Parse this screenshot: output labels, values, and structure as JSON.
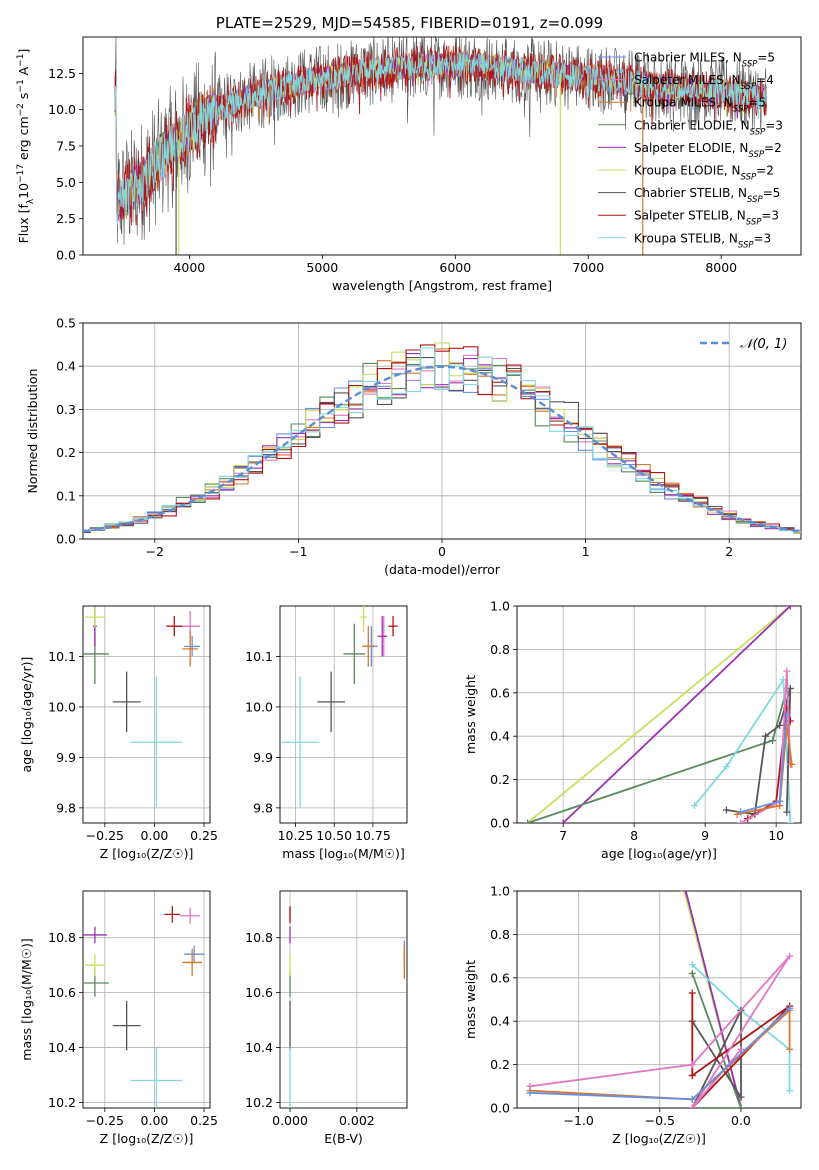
{
  "title": "PLATE=2529, MJD=54585, FIBERID=0191, z=0.099",
  "colors": {
    "chabrier_miles": "#6a8ee0",
    "salpeter_miles": "#e377c2",
    "kroupa_miles": "#d9772a",
    "chabrier_elodie": "#5a8a5e",
    "salpeter_elodie": "#9b30b0",
    "kroupa_elodie": "#c8e060",
    "chabrier_stelib": "#555555",
    "salpeter_stelib": "#b01515",
    "kroupa_stelib": "#80d8e0",
    "gaussian": "#5b8ed6",
    "grid": "#b0b0b0"
  },
  "chart_data": [
    {
      "id": "spectrum",
      "type": "line",
      "xlabel": "wavelength [Angstrom, rest frame]",
      "ylabel": "Flux [f$_\\lambda$10$^{-17}$ erg cm$^{-2}$ s$^{-1}$ A$^{-1}$]",
      "ylabel_parts": [
        "Flux [f",
        "λ",
        "10",
        "−17",
        " erg cm",
        "−2",
        " s",
        "−1",
        " A",
        "−1",
        "]"
      ],
      "xlim": [
        3200,
        8600
      ],
      "ylim": [
        0,
        15
      ],
      "xticks": [
        4000,
        5000,
        6000,
        7000,
        8000
      ],
      "yticks": [
        0.0,
        2.5,
        5.0,
        7.5,
        10.0,
        12.5
      ],
      "grid": false,
      "legend_position": "top-right",
      "legend": [
        {
          "key": "chabrier_miles",
          "label": "Chabrier MILES, N",
          "sub": "SSP",
          "suffix": "=5"
        },
        {
          "key": "salpeter_miles",
          "label": "Salpeter MILES, N",
          "sub": "SSP",
          "suffix": "=4"
        },
        {
          "key": "kroupa_miles",
          "label": "Kroupa MILES, N",
          "sub": "SSP",
          "suffix": "=5"
        },
        {
          "key": "chabrier_elodie",
          "label": "Chabrier ELODIE, N",
          "sub": "SSP",
          "suffix": "=3"
        },
        {
          "key": "salpeter_elodie",
          "label": "Salpeter ELODIE, N",
          "sub": "SSP",
          "suffix": "=2"
        },
        {
          "key": "kroupa_elodie",
          "label": "Kroupa ELODIE, N",
          "sub": "SSP",
          "suffix": "=2"
        },
        {
          "key": "chabrier_stelib",
          "label": "Chabrier STELIB, N",
          "sub": "SSP",
          "suffix": "=5"
        },
        {
          "key": "salpeter_stelib",
          "label": "Salpeter STELIB, N",
          "sub": "SSP",
          "suffix": "=3"
        },
        {
          "key": "kroupa_stelib",
          "label": "Kroupa STELIB, N",
          "sub": "SSP",
          "suffix": "=3"
        }
      ],
      "continuum": {
        "x": [
          3450,
          3550,
          3650,
          3750,
          3850,
          3950,
          4100,
          4300,
          4500,
          4700,
          4900,
          5100,
          5300,
          5500,
          5700,
          5900,
          6100,
          6300,
          6500,
          6700,
          6900,
          7100,
          7300,
          7500,
          7700,
          7900,
          8100,
          8300
        ],
        "y": [
          3.6,
          4.4,
          5.2,
          6.3,
          7.3,
          8.2,
          9.4,
          10.4,
          11.0,
          11.6,
          12.0,
          12.3,
          12.6,
          12.8,
          13.0,
          13.1,
          13.1,
          12.9,
          12.7,
          12.5,
          12.3,
          12.1,
          11.9,
          11.6,
          11.4,
          11.3,
          11.1,
          10.9
        ]
      },
      "dropouts": [
        {
          "key": "kroupa_elodie",
          "x": 6790,
          "to": 0
        },
        {
          "key": "kroupa_miles",
          "x": 7410,
          "to": 0
        },
        {
          "key": "chabrier_stelib",
          "x": 3900,
          "to": 0
        },
        {
          "key": "kroupa_elodie",
          "x": 3920,
          "to": 0
        }
      ]
    },
    {
      "id": "residuals",
      "type": "step-histogram",
      "xlabel": "(data-model)/error",
      "ylabel": "Normed distribution",
      "xlim": [
        -2.5,
        2.5
      ],
      "ylim": [
        0,
        0.5
      ],
      "xticks": [
        -2,
        -1,
        0,
        1,
        2
      ],
      "xtick_labels": [
        "−2",
        "−1",
        "0",
        "1",
        "2"
      ],
      "yticks": [
        0.0,
        0.1,
        0.2,
        0.3,
        0.4,
        0.5
      ],
      "grid": true,
      "legend_position": "top-right",
      "gaussian_label": "𝒩(0, 1)",
      "bin_width": 0.1
    },
    {
      "id": "age_vs_Z",
      "type": "errorbar",
      "xlabel": "Z [log₁₀(Z/Z☉)]",
      "ylabel": "age  [log₁₀(age/yr)]",
      "xlim": [
        -0.36,
        0.28
      ],
      "ylim": [
        9.77,
        10.2
      ],
      "xticks": [
        -0.25,
        0.0,
        0.25
      ],
      "xtick_labels": [
        "−0.25",
        "0.00",
        "0.25"
      ],
      "yticks": [
        9.8,
        9.9,
        10.0,
        10.1
      ],
      "yticks_labels": [
        "9.8",
        "9.9",
        "10.0",
        "10.1"
      ],
      "grid": true,
      "points": [
        {
          "key": "chabrier_miles",
          "x": 0.19,
          "y": 10.12,
          "xerr": 0.04,
          "yerr": 0.02
        },
        {
          "key": "salpeter_miles",
          "x": 0.18,
          "y": 10.16,
          "xerr": 0.05,
          "yerr": 0.03
        },
        {
          "key": "kroupa_miles",
          "x": 0.18,
          "y": 10.115,
          "xerr": 0.04,
          "yerr": 0.035
        },
        {
          "key": "chabrier_elodie",
          "x": -0.3,
          "y": 10.105,
          "xerr": 0.07,
          "yerr": 0.06
        },
        {
          "key": "salpeter_elodie",
          "x": -0.3,
          "y": 10.16,
          "xerr": 0.01,
          "yerr": 0.04
        },
        {
          "key": "kroupa_elodie",
          "x": -0.3,
          "y": 10.178,
          "xerr": 0.05,
          "yerr": 0.02
        },
        {
          "key": "chabrier_stelib",
          "x": -0.14,
          "y": 10.01,
          "xerr": 0.07,
          "yerr": 0.06
        },
        {
          "key": "salpeter_stelib",
          "x": 0.1,
          "y": 10.16,
          "xerr": 0.04,
          "yerr": 0.02
        },
        {
          "key": "kroupa_stelib",
          "x": 0.01,
          "y": 9.93,
          "xerr": 0.13,
          "yerr": 0.13
        }
      ]
    },
    {
      "id": "age_vs_mass",
      "type": "errorbar",
      "xlabel": "mass [log₁₀(M/M☉)]",
      "ylabel": "",
      "xlim": [
        10.15,
        10.97
      ],
      "ylim": [
        9.77,
        10.2
      ],
      "xticks": [
        10.25,
        10.5,
        10.75
      ],
      "xtick_labels": [
        "10.25",
        "10.50",
        "10.75"
      ],
      "yticks": [
        9.8,
        9.9,
        10.0,
        10.1
      ],
      "yticks_labels": [
        "9.8",
        "9.9",
        "10.0",
        "10.1"
      ],
      "grid": true,
      "points": [
        {
          "key": "chabrier_miles",
          "x": 10.74,
          "y": 10.12,
          "xerr": 0.04,
          "yerr": 0.04
        },
        {
          "key": "salpeter_miles",
          "x": 10.82,
          "y": 10.14,
          "xerr": 0.02,
          "yerr": 0.04
        },
        {
          "key": "kroupa_miles",
          "x": 10.72,
          "y": 10.12,
          "xerr": 0.04,
          "yerr": 0.04
        },
        {
          "key": "chabrier_elodie",
          "x": 10.63,
          "y": 10.105,
          "xerr": 0.07,
          "yerr": 0.06
        },
        {
          "key": "salpeter_elodie",
          "x": 10.81,
          "y": 10.14,
          "xerr": 0.03,
          "yerr": 0.04
        },
        {
          "key": "kroupa_elodie",
          "x": 10.69,
          "y": 10.178,
          "xerr": 0.02,
          "yerr": 0.03
        },
        {
          "key": "chabrier_stelib",
          "x": 10.48,
          "y": 10.01,
          "xerr": 0.09,
          "yerr": 0.06
        },
        {
          "key": "salpeter_stelib",
          "x": 10.88,
          "y": 10.16,
          "xerr": 0.03,
          "yerr": 0.02
        },
        {
          "key": "kroupa_stelib",
          "x": 10.28,
          "y": 9.93,
          "xerr": 0.12,
          "yerr": 0.13
        }
      ]
    },
    {
      "id": "massweight_vs_age",
      "type": "line",
      "xlabel": "age  [log₁₀(age/yr)]",
      "ylabel": "mass weight",
      "xlim": [
        6.35,
        10.35
      ],
      "ylim": [
        0,
        1
      ],
      "xticks": [
        7,
        8,
        9,
        10
      ],
      "yticks": [
        0.0,
        0.2,
        0.4,
        0.6,
        0.8,
        1.0
      ],
      "grid": true,
      "series": [
        {
          "key": "kroupa_elodie",
          "x": [
            6.5,
            10.2
          ],
          "y": [
            0.0,
            1.0
          ]
        },
        {
          "key": "salpeter_elodie",
          "x": [
            7.0,
            10.2
          ],
          "y": [
            0.0,
            1.0
          ]
        },
        {
          "key": "chabrier_elodie",
          "x": [
            6.5,
            9.95,
            10.15
          ],
          "y": [
            0.0,
            0.38,
            0.62
          ]
        },
        {
          "key": "kroupa_stelib",
          "x": [
            8.85,
            9.3,
            10.1,
            10.2
          ],
          "y": [
            0.08,
            0.26,
            0.66,
            0.0
          ]
        },
        {
          "key": "chabrier_stelib",
          "x": [
            9.3,
            9.7,
            9.85,
            10.05,
            10.2,
            10.15
          ],
          "y": [
            0.06,
            0.04,
            0.4,
            0.45,
            0.62,
            0.05
          ]
        },
        {
          "key": "salpeter_stelib",
          "x": [
            9.6,
            10.0,
            10.15,
            10.2
          ],
          "y": [
            0.02,
            0.1,
            0.53,
            0.47
          ]
        },
        {
          "key": "salpeter_miles",
          "x": [
            9.5,
            10.05,
            10.15,
            10.2
          ],
          "y": [
            0.0,
            0.1,
            0.7,
            0.27
          ]
        },
        {
          "key": "kroupa_miles",
          "x": [
            9.45,
            10.05,
            10.15,
            10.22
          ],
          "y": [
            0.04,
            0.08,
            0.45,
            0.27
          ]
        },
        {
          "key": "chabrier_miles",
          "x": [
            9.5,
            10.05,
            10.15
          ],
          "y": [
            0.05,
            0.1,
            0.5
          ]
        }
      ]
    },
    {
      "id": "mass_vs_Z",
      "type": "errorbar",
      "xlabel": "Z [log₁₀(Z/Z☉)]",
      "ylabel": "mass [log₁₀(M/M☉)]",
      "xlim": [
        -0.36,
        0.28
      ],
      "ylim": [
        10.18,
        10.97
      ],
      "xticks": [
        -0.25,
        0.0,
        0.25
      ],
      "xtick_labels": [
        "−0.25",
        "0.00",
        "0.25"
      ],
      "yticks": [
        10.2,
        10.4,
        10.6,
        10.8
      ],
      "yticks_labels": [
        "10.2",
        "10.4",
        "10.6",
        "10.8"
      ],
      "grid": true,
      "points": [
        {
          "key": "chabrier_miles",
          "x": 0.2,
          "y": 10.74,
          "xerr": 0.05,
          "yerr": 0.03
        },
        {
          "key": "salpeter_miles",
          "x": 0.18,
          "y": 10.88,
          "xerr": 0.05,
          "yerr": 0.03
        },
        {
          "key": "kroupa_miles",
          "x": 0.19,
          "y": 10.71,
          "xerr": 0.05,
          "yerr": 0.05
        },
        {
          "key": "chabrier_elodie",
          "x": -0.3,
          "y": 10.635,
          "xerr": 0.07,
          "yerr": 0.05
        },
        {
          "key": "salpeter_elodie",
          "x": -0.3,
          "y": 10.81,
          "xerr": 0.06,
          "yerr": 0.03
        },
        {
          "key": "kroupa_elodie",
          "x": -0.3,
          "y": 10.7,
          "xerr": 0.05,
          "yerr": 0.04
        },
        {
          "key": "chabrier_stelib",
          "x": -0.14,
          "y": 10.48,
          "xerr": 0.07,
          "yerr": 0.09
        },
        {
          "key": "salpeter_stelib",
          "x": 0.09,
          "y": 10.885,
          "xerr": 0.04,
          "yerr": 0.03
        },
        {
          "key": "kroupa_stelib",
          "x": 0.01,
          "y": 10.28,
          "xerr": 0.13,
          "yerr": 0.12
        }
      ]
    },
    {
      "id": "mass_vs_EBV",
      "type": "errorbar",
      "xlabel": "E(B-V)",
      "ylabel": "",
      "xlim": [
        -0.0003,
        0.0035
      ],
      "ylim": [
        10.18,
        10.97
      ],
      "xticks": [
        0.0,
        0.002
      ],
      "xtick_labels": [
        "0.000",
        "0.002"
      ],
      "yticks": [
        10.2,
        10.4,
        10.6,
        10.8
      ],
      "yticks_labels": [
        "10.2",
        "10.4",
        "10.6",
        "10.8"
      ],
      "grid": true,
      "points": [
        {
          "key": "chabrier_miles",
          "x": 0.00342,
          "y": 10.74,
          "xerr": 0,
          "yerr": 0.05
        },
        {
          "key": "kroupa_miles",
          "x": 0.00342,
          "y": 10.71,
          "xerr": 0,
          "yerr": 0.06
        },
        {
          "key": "salpeter_miles",
          "x": 0.0,
          "y": 10.88,
          "xerr": 0,
          "yerr": 0.03
        },
        {
          "key": "chabrier_elodie",
          "x": 0.0,
          "y": 10.635,
          "xerr": 0,
          "yerr": 0.05
        },
        {
          "key": "salpeter_elodie",
          "x": 0.0,
          "y": 10.81,
          "xerr": 0,
          "yerr": 0.03
        },
        {
          "key": "kroupa_elodie",
          "x": 0.0,
          "y": 10.7,
          "xerr": 0,
          "yerr": 0.04
        },
        {
          "key": "chabrier_stelib",
          "x": 0.0,
          "y": 10.48,
          "xerr": 0,
          "yerr": 0.09
        },
        {
          "key": "salpeter_stelib",
          "x": 0.0,
          "y": 10.885,
          "xerr": 0,
          "yerr": 0.03
        },
        {
          "key": "kroupa_stelib",
          "x": 0.0,
          "y": 10.28,
          "xerr": 0,
          "yerr": 0.12
        }
      ]
    },
    {
      "id": "massweight_vs_Z",
      "type": "line",
      "xlabel": "Z [log₁₀(Z/Z☉)]",
      "ylabel": "mass weight",
      "xlim": [
        -1.38,
        0.37
      ],
      "ylim": [
        0,
        1
      ],
      "xticks": [
        -1.0,
        -0.5,
        0.0
      ],
      "xtick_labels": [
        "−1.0",
        "−0.5",
        "0.0"
      ],
      "yticks": [
        0.0,
        0.2,
        0.4,
        0.6,
        0.8,
        1.0
      ],
      "grid": true,
      "series": [
        {
          "key": "kroupa_elodie",
          "x": [
            -0.35,
            0.0
          ],
          "y": [
            1.0,
            0.0
          ]
        },
        {
          "key": "salpeter_elodie",
          "x": [
            -0.34,
            0.0
          ],
          "y": [
            1.0,
            0.0
          ]
        },
        {
          "key": "chabrier_elodie",
          "x": [
            -0.3,
            0.0,
            -0.3
          ],
          "y": [
            0.62,
            0.0,
            0.0
          ]
        },
        {
          "key": "kroupa_stelib",
          "x": [
            -0.3,
            0.0,
            0.3,
            0.3
          ],
          "y": [
            0.66,
            0.45,
            0.27,
            0.08
          ]
        },
        {
          "key": "chabrier_stelib",
          "x": [
            -0.3,
            0.0,
            0.0,
            -0.3
          ],
          "y": [
            0.0,
            0.45,
            0.05,
            0.4
          ]
        },
        {
          "key": "salpeter_stelib",
          "x": [
            -0.3,
            -0.3,
            0.3,
            -0.3
          ],
          "y": [
            0.53,
            0.15,
            0.47,
            0.0
          ]
        },
        {
          "key": "salpeter_miles",
          "x": [
            -1.3,
            -0.3,
            0.3,
            -0.3,
            0.0
          ],
          "y": [
            0.1,
            0.2,
            0.7,
            0.0,
            0.27
          ]
        },
        {
          "key": "kroupa_miles",
          "x": [
            -1.3,
            -0.3,
            0.3,
            0.3
          ],
          "y": [
            0.08,
            0.04,
            0.45,
            0.27
          ]
        },
        {
          "key": "chabrier_miles",
          "x": [
            -1.3,
            -0.3,
            0.3
          ],
          "y": [
            0.07,
            0.04,
            0.46
          ]
        }
      ]
    }
  ]
}
